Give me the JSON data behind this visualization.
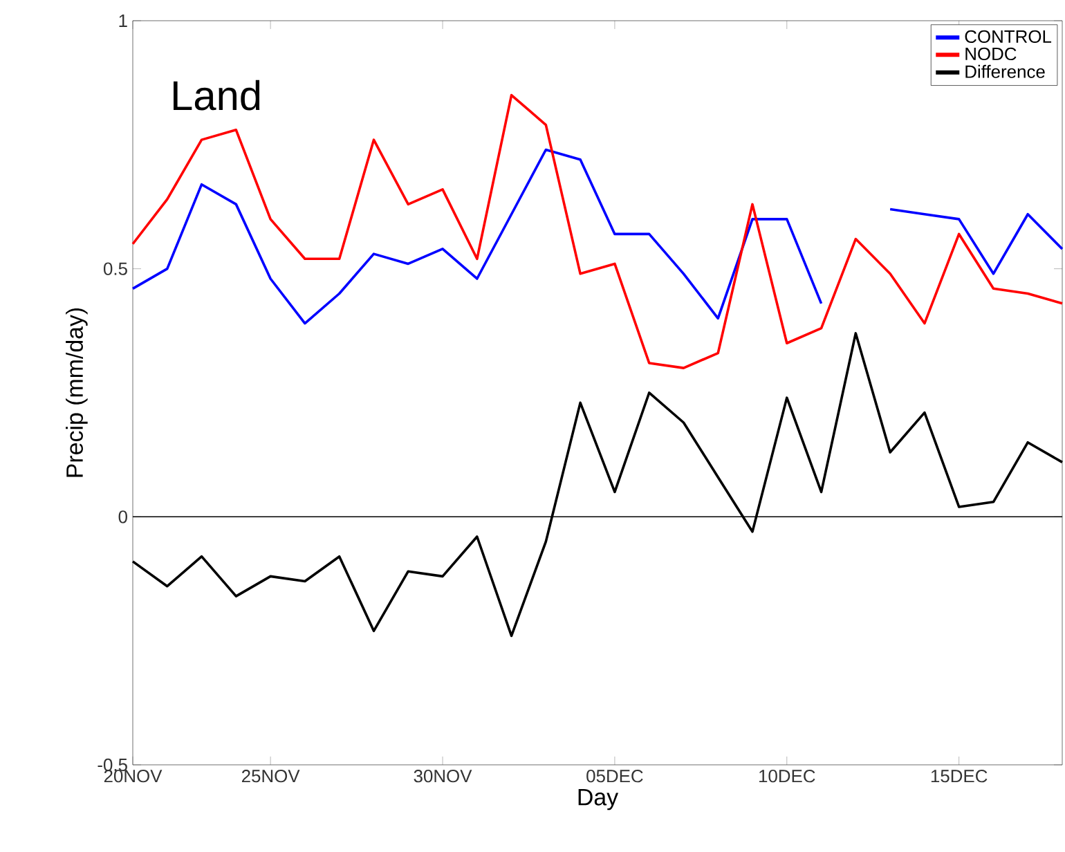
{
  "chart_data": {
    "type": "line",
    "xlabel": "Day",
    "ylabel": "Precip (mm/day)",
    "annotations": [
      "Land"
    ],
    "categories": [
      "20NOV",
      null,
      null,
      null,
      "25NOV",
      null,
      null,
      null,
      null,
      "30NOV",
      null,
      null,
      null,
      null,
      "05DEC",
      null,
      null,
      null,
      null,
      "10DEC",
      null,
      null,
      null,
      null,
      "15DEC",
      null,
      null,
      null
    ],
    "series": [
      {
        "name": "CONTROL",
        "color": "#0000ff",
        "values": [
          0.46,
          0.5,
          0.67,
          0.63,
          0.48,
          0.39,
          0.45,
          0.53,
          0.51,
          0.54,
          0.48,
          0.61,
          0.74,
          0.72,
          0.57,
          0.57,
          0.49,
          0.4,
          0.6,
          0.6,
          0.43,
          null,
          0.62,
          0.61,
          0.6,
          0.49,
          0.61,
          0.54
        ]
      },
      {
        "name": "NODC",
        "color": "#ff0000",
        "values": [
          0.55,
          0.64,
          0.76,
          0.78,
          0.6,
          0.52,
          0.52,
          0.76,
          0.63,
          0.66,
          0.52,
          0.85,
          0.79,
          0.49,
          0.51,
          0.31,
          0.3,
          0.33,
          0.63,
          0.35,
          0.38,
          0.56,
          0.49,
          0.39,
          0.57,
          0.46,
          0.45,
          0.43
        ]
      },
      {
        "name": "Difference",
        "color": "#000000",
        "values": [
          -0.09,
          -0.14,
          -0.08,
          -0.16,
          -0.12,
          -0.13,
          -0.08,
          -0.23,
          -0.11,
          -0.12,
          -0.04,
          -0.24,
          -0.05,
          0.23,
          0.05,
          0.25,
          0.19,
          0.08,
          -0.03,
          0.24,
          0.05,
          0.37,
          0.13,
          0.21,
          0.02,
          0.03,
          0.15,
          0.11
        ]
      }
    ],
    "ylim": [
      -0.5,
      1
    ],
    "yticks": [
      -0.5,
      0,
      0.5,
      1
    ],
    "ref_lines": [
      {
        "axis": "y",
        "value": 0,
        "color": "#000000"
      }
    ],
    "legend": "top right",
    "marker": "none",
    "line_style": "solid",
    "grid": false
  }
}
